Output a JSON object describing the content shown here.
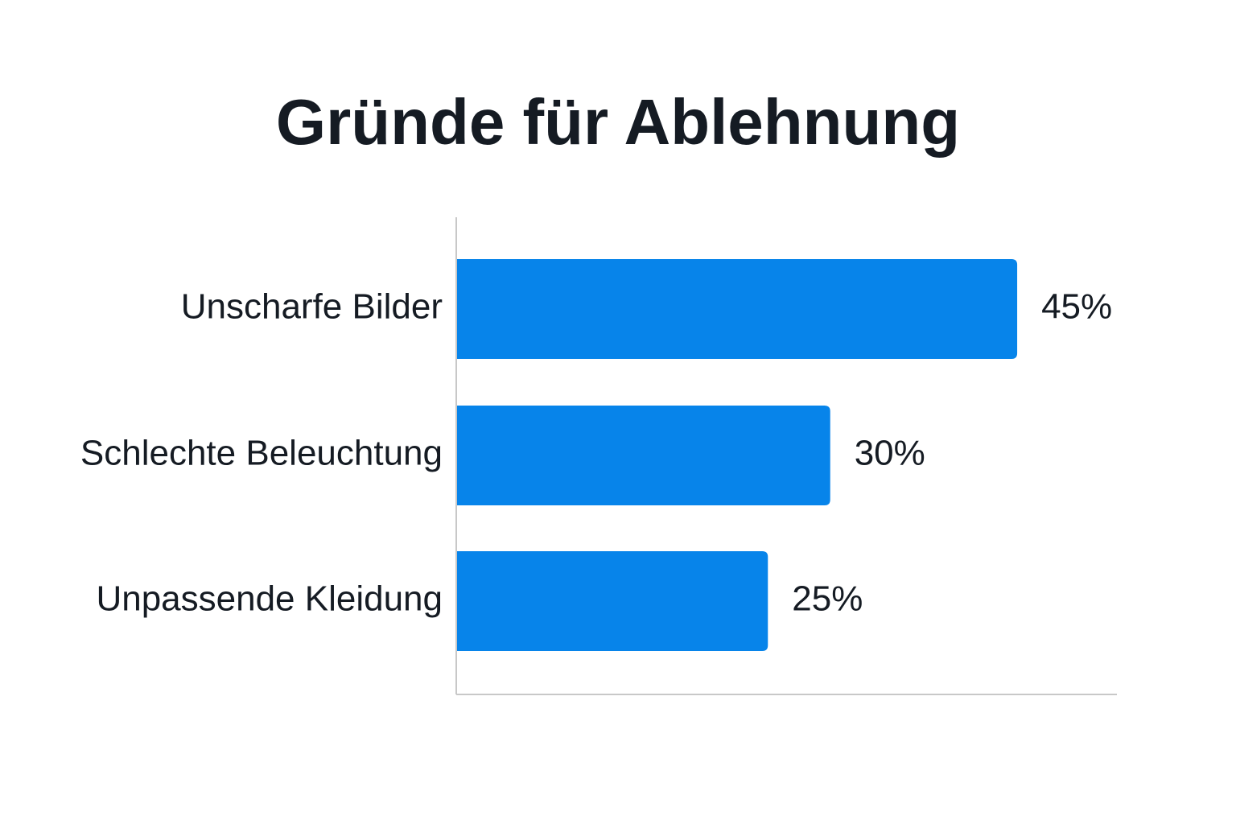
{
  "chart_data": {
    "type": "bar",
    "orientation": "horizontal",
    "title": "Gründe für Ablehnung",
    "categories": [
      "Unscharfe Bilder",
      "Schlechte Beleuchtung",
      "Unpassende Kleidung"
    ],
    "values": [
      45,
      30,
      25
    ],
    "value_labels": [
      "45%",
      "30%",
      "25%"
    ],
    "unit": "%",
    "xlim": [
      0,
      53
    ],
    "bar_color": "#0784ea",
    "axis_color": "#c8c8c8",
    "grid": false,
    "legend": "none"
  }
}
